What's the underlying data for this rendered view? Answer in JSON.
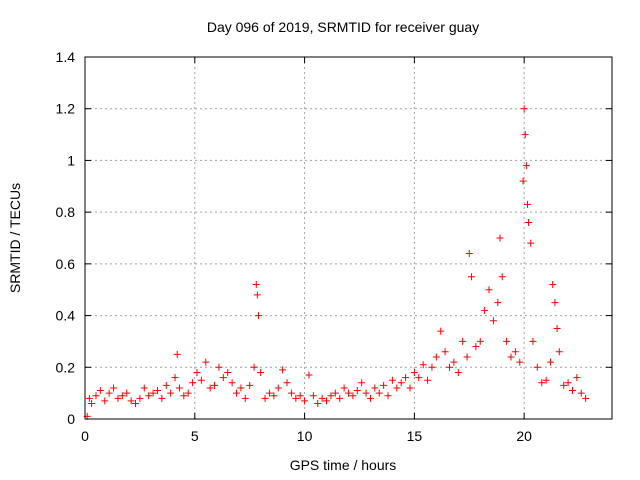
{
  "chart_data": {
    "type": "scatter",
    "title": "Day 096 of 2019, SRMTID for receiver guay",
    "xlabel": "GPS time / hours",
    "ylabel": "SRMTID / TECUs",
    "xlim": [
      0,
      24
    ],
    "ylim": [
      0,
      1.4
    ],
    "xticks": [
      0,
      5,
      10,
      15,
      20
    ],
    "xtick_labels": [
      "0",
      "5",
      "10",
      "15",
      "20"
    ],
    "yticks": [
      0,
      0.2,
      0.4,
      0.6,
      0.8,
      1,
      1.2,
      1.4
    ],
    "ytick_labels": [
      "0",
      "0.2",
      "0.4",
      "0.6",
      "0.8",
      "1",
      "1.2",
      "1.4"
    ],
    "grid": true,
    "marker": "plus",
    "color": "#ff0000",
    "series": [
      {
        "name": "SRMTID",
        "x": [
          0.1,
          0.2,
          0.3,
          0.5,
          0.7,
          0.9,
          1.1,
          1.3,
          1.5,
          1.7,
          1.9,
          2.1,
          2.3,
          2.5,
          2.7,
          2.9,
          3.1,
          3.3,
          3.5,
          3.7,
          3.9,
          4.1,
          4.2,
          4.3,
          4.5,
          4.7,
          4.9,
          5.1,
          5.3,
          5.5,
          5.7,
          5.9,
          6.1,
          6.3,
          6.5,
          6.7,
          6.9,
          7.1,
          7.3,
          7.5,
          7.7,
          7.8,
          7.85,
          7.9,
          8.0,
          8.2,
          8.4,
          8.6,
          8.8,
          9.0,
          9.2,
          9.4,
          9.6,
          9.8,
          10.0,
          10.2,
          10.4,
          10.6,
          10.8,
          11.0,
          11.2,
          11.4,
          11.6,
          11.8,
          12.0,
          12.2,
          12.4,
          12.6,
          12.8,
          13.0,
          13.2,
          13.4,
          13.6,
          13.8,
          14.0,
          14.2,
          14.4,
          14.6,
          14.8,
          15.0,
          15.2,
          15.4,
          15.6,
          15.8,
          16.0,
          16.2,
          16.4,
          16.6,
          16.8,
          17.0,
          17.2,
          17.4,
          17.5,
          17.6,
          17.8,
          18.0,
          18.2,
          18.4,
          18.6,
          18.8,
          18.9,
          19.0,
          19.2,
          19.4,
          19.6,
          19.8,
          19.95,
          20.0,
          20.05,
          20.1,
          20.15,
          20.2,
          20.3,
          20.4,
          20.6,
          20.8,
          21.0,
          21.2,
          21.3,
          21.4,
          21.5,
          21.6,
          21.8,
          22.0,
          22.2,
          22.4,
          22.6,
          22.8
        ],
        "y": [
          0.01,
          0.08,
          0.06,
          0.09,
          0.11,
          0.07,
          0.1,
          0.12,
          0.08,
          0.09,
          0.1,
          0.07,
          0.06,
          0.08,
          0.12,
          0.09,
          0.1,
          0.11,
          0.08,
          0.13,
          0.1,
          0.16,
          0.25,
          0.12,
          0.09,
          0.1,
          0.14,
          0.18,
          0.15,
          0.22,
          0.12,
          0.13,
          0.2,
          0.16,
          0.18,
          0.14,
          0.1,
          0.12,
          0.08,
          0.13,
          0.2,
          0.52,
          0.48,
          0.4,
          0.18,
          0.08,
          0.1,
          0.09,
          0.12,
          0.19,
          0.14,
          0.1,
          0.08,
          0.09,
          0.07,
          0.17,
          0.09,
          0.06,
          0.08,
          0.07,
          0.09,
          0.1,
          0.08,
          0.12,
          0.1,
          0.09,
          0.11,
          0.14,
          0.1,
          0.08,
          0.12,
          0.1,
          0.13,
          0.09,
          0.15,
          0.12,
          0.14,
          0.16,
          0.12,
          0.18,
          0.16,
          0.21,
          0.15,
          0.2,
          0.24,
          0.34,
          0.26,
          0.2,
          0.22,
          0.18,
          0.3,
          0.24,
          0.64,
          0.55,
          0.28,
          0.3,
          0.42,
          0.5,
          0.38,
          0.45,
          0.7,
          0.55,
          0.3,
          0.24,
          0.26,
          0.22,
          0.92,
          1.2,
          1.1,
          0.98,
          0.83,
          0.76,
          0.68,
          0.3,
          0.2,
          0.14,
          0.15,
          0.22,
          0.52,
          0.45,
          0.35,
          0.26,
          0.13,
          0.14,
          0.11,
          0.16,
          0.1,
          0.08
        ]
      }
    ]
  }
}
